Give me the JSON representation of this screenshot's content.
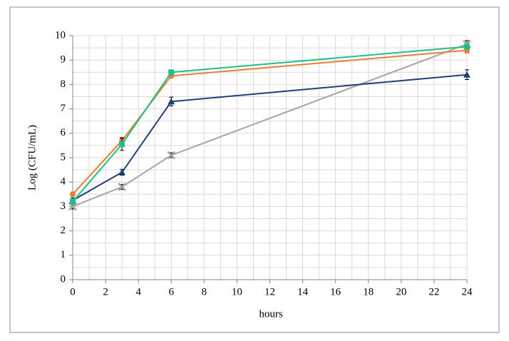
{
  "chart_data": {
    "type": "line",
    "x_label": "hours",
    "y_label": "Log (CFU/mL)",
    "xlim": [
      0,
      24
    ],
    "xticks": [
      0,
      2,
      4,
      6,
      8,
      10,
      12,
      14,
      16,
      18,
      20,
      22,
      24
    ],
    "ylim": [
      0,
      10
    ],
    "yticks": [
      0,
      1,
      2,
      3,
      4,
      5,
      6,
      7,
      8,
      9,
      10
    ],
    "grid": true,
    "xgrid_step": 1,
    "ygrid_step": 0.5,
    "x": [
      0,
      3,
      6,
      24
    ],
    "series": [
      {
        "color": "#a5a5a5",
        "marker": "x",
        "values": [
          3.0,
          3.8,
          5.1,
          9.65
        ],
        "errors": [
          0.1,
          0.1,
          0.1,
          0.15
        ]
      },
      {
        "color": "#203f7a",
        "marker": "triangle",
        "values": [
          3.25,
          4.4,
          7.3,
          8.4
        ],
        "errors": [
          0.1,
          0.12,
          0.18,
          0.2
        ]
      },
      {
        "color": "#ed7d31",
        "marker": "circle",
        "values": [
          3.5,
          5.7,
          8.35,
          9.4
        ],
        "errors": [
          0.08,
          0.12,
          0.08,
          0.1
        ]
      },
      {
        "color": "#1fbf8a",
        "marker": "square",
        "values": [
          3.2,
          5.55,
          8.5,
          9.55
        ],
        "errors": [
          0.08,
          0.25,
          0.08,
          0.1
        ]
      }
    ]
  }
}
